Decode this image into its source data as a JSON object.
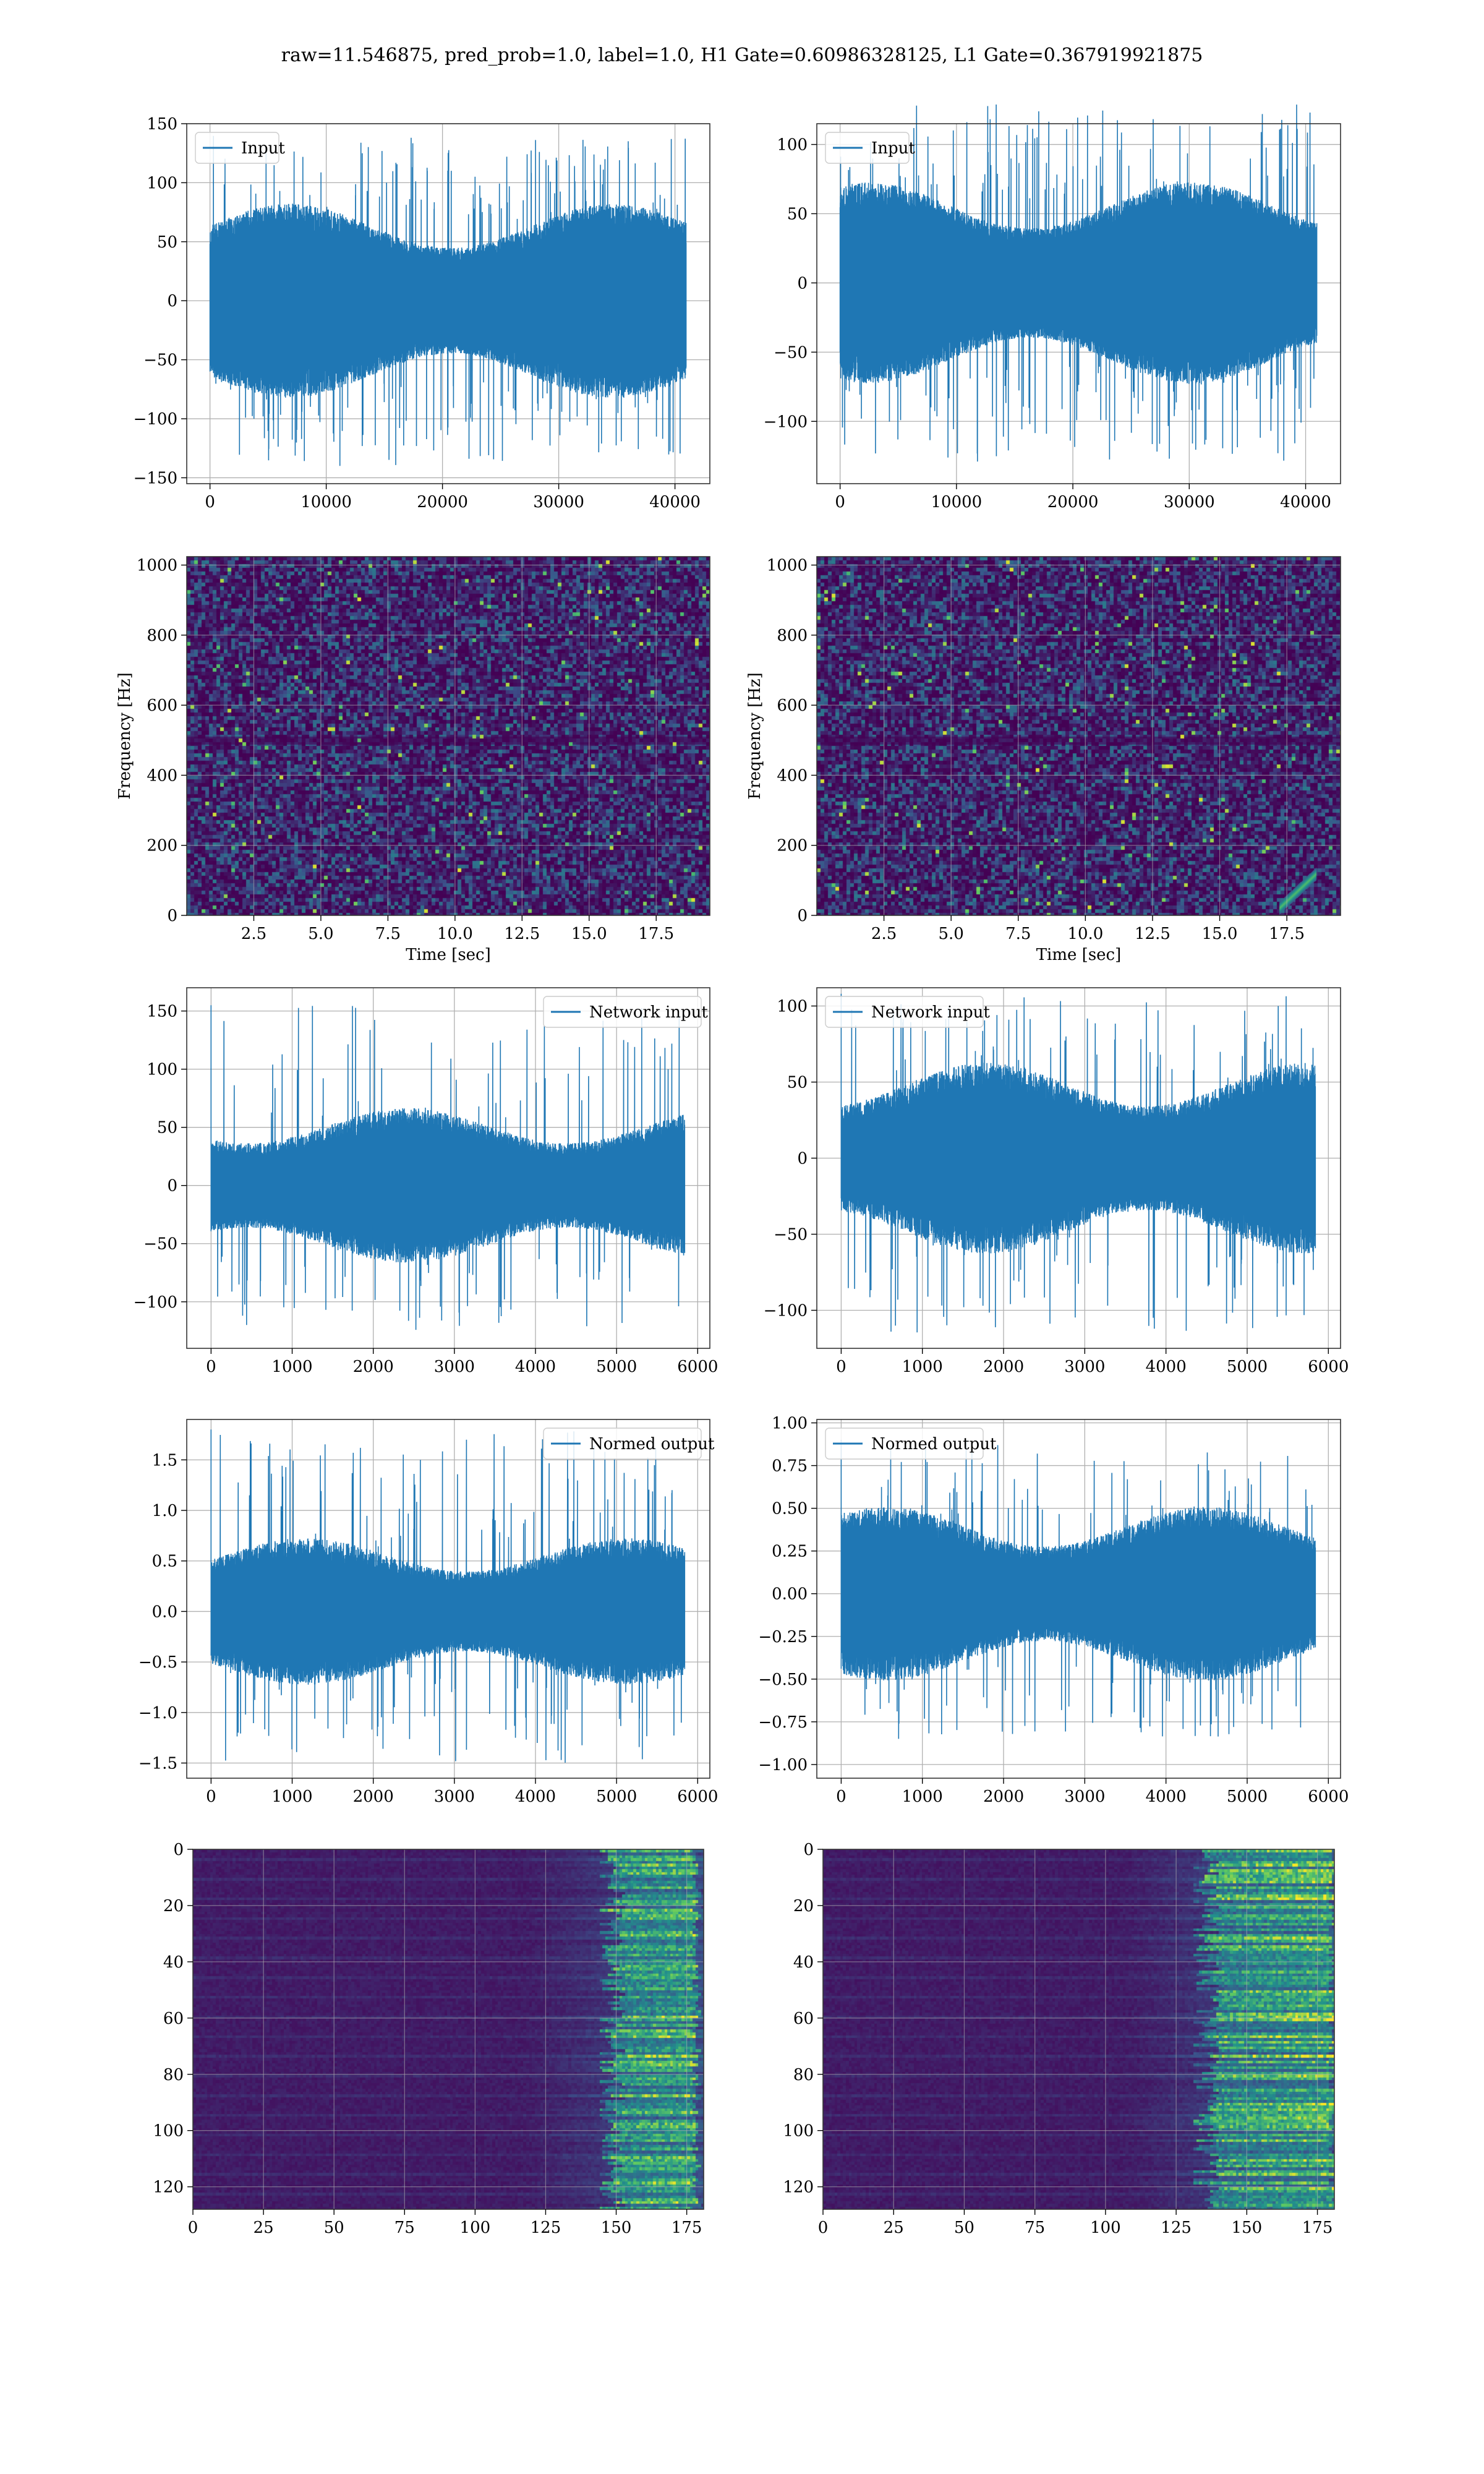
{
  "figure": {
    "suptitle": "raw=11.546875, pred_prob=1.0, label=1.0, H1 Gate=0.60986328125, L1 Gate=0.367919921875"
  },
  "colors": {
    "line": "#1f77b4",
    "grid": "#b0b0b0",
    "frame": "#333333",
    "viridis": [
      "#440154",
      "#3b528b",
      "#21918c",
      "#5ec962",
      "#fde725"
    ]
  },
  "chart_data": [
    {
      "id": "h1-input",
      "type": "line",
      "signal": "dense-noise",
      "legend": {
        "label": "Input",
        "loc": "upper-left"
      },
      "xlim": [
        -2000,
        43000
      ],
      "ylim": [
        -155,
        150
      ],
      "xticks": [
        0,
        10000,
        20000,
        30000,
        40000
      ],
      "yticks": [
        -150,
        -100,
        -50,
        0,
        50,
        100,
        150
      ],
      "n_samples": 40960,
      "envelope": {
        "core": 68,
        "peak_max": 140,
        "peak_min": -140
      }
    },
    {
      "id": "l1-input",
      "type": "line",
      "signal": "dense-noise",
      "legend": {
        "label": "Input",
        "loc": "upper-left"
      },
      "xlim": [
        -2000,
        43000
      ],
      "ylim": [
        -145,
        115
      ],
      "xticks": [
        0,
        10000,
        20000,
        30000,
        40000
      ],
      "yticks": [
        -100,
        -50,
        0,
        50,
        100
      ],
      "n_samples": 40960,
      "envelope": {
        "core": 60,
        "peak_max": 130,
        "peak_min": -130
      }
    },
    {
      "id": "h1-spectrogram",
      "type": "heatmap",
      "pattern": "noise-spectrogram",
      "xlabel": "Time [sec]",
      "ylabel": "Frequency [Hz]",
      "xlim": [
        0,
        19.5
      ],
      "ylim": [
        0,
        1024
      ],
      "xticks": [
        2.5,
        5.0,
        7.5,
        10.0,
        12.5,
        15.0,
        17.5
      ],
      "yticks": [
        0,
        200,
        400,
        600,
        800,
        1000
      ],
      "dark_band_hz": 500,
      "chirp": false
    },
    {
      "id": "l1-spectrogram",
      "type": "heatmap",
      "pattern": "noise-spectrogram",
      "xlabel": "Time [sec]",
      "ylabel": "Frequency [Hz]",
      "xlim": [
        0,
        19.5
      ],
      "ylim": [
        0,
        1024
      ],
      "xticks": [
        2.5,
        5.0,
        7.5,
        10.0,
        12.5,
        15.0,
        17.5
      ],
      "yticks": [
        0,
        200,
        400,
        600,
        800,
        1000
      ],
      "dark_band_hz": 500,
      "chirp": true,
      "chirp_time": [
        17.2,
        18.6
      ],
      "chirp_freq": [
        20,
        120
      ]
    },
    {
      "id": "h1-network-input",
      "type": "line",
      "signal": "noise",
      "legend": {
        "label": "Network input",
        "loc": "upper-right"
      },
      "xlim": [
        -300,
        6150
      ],
      "ylim": [
        -140,
        170
      ],
      "xticks": [
        0,
        1000,
        2000,
        3000,
        4000,
        5000,
        6000
      ],
      "yticks": [
        -100,
        -50,
        0,
        50,
        100,
        150
      ],
      "n_samples": 5840,
      "envelope": {
        "core": 55,
        "peak_max": 155,
        "peak_min": -125
      }
    },
    {
      "id": "l1-network-input",
      "type": "line",
      "signal": "noise",
      "legend": {
        "label": "Network input",
        "loc": "upper-left"
      },
      "xlim": [
        -300,
        6150
      ],
      "ylim": [
        -125,
        112
      ],
      "xticks": [
        0,
        1000,
        2000,
        3000,
        4000,
        5000,
        6000
      ],
      "yticks": [
        -100,
        -50,
        0,
        50,
        100
      ],
      "n_samples": 5840,
      "envelope": {
        "core": 52,
        "peak_max": 108,
        "peak_min": -115
      }
    },
    {
      "id": "h1-normed-output",
      "type": "line",
      "signal": "noise",
      "legend": {
        "label": "Normed output",
        "loc": "upper-right"
      },
      "xlim": [
        -300,
        6150
      ],
      "ylim": [
        -1.65,
        1.9
      ],
      "xticks": [
        0,
        1000,
        2000,
        3000,
        4000,
        5000,
        6000
      ],
      "yticks": [
        -1.5,
        -1.0,
        -0.5,
        0.0,
        0.5,
        1.0,
        1.5
      ],
      "n_samples": 5840,
      "envelope": {
        "core": 0.6,
        "peak_max": 1.8,
        "peak_min": -1.5
      }
    },
    {
      "id": "l1-normed-output",
      "type": "line",
      "signal": "noise",
      "legend": {
        "label": "Normed output",
        "loc": "upper-left"
      },
      "xlim": [
        -300,
        6150
      ],
      "ylim": [
        -1.08,
        1.02
      ],
      "xticks": [
        0,
        1000,
        2000,
        3000,
        4000,
        5000,
        6000
      ],
      "yticks": [
        -1.0,
        -0.75,
        -0.5,
        -0.25,
        0.0,
        0.25,
        0.5,
        0.75,
        1.0
      ],
      "n_samples": 5840,
      "envelope": {
        "core": 0.42,
        "peak_max": 0.9,
        "peak_min": -0.85
      }
    },
    {
      "id": "h1-feature-map",
      "type": "heatmap",
      "pattern": "feature-map",
      "xlim": [
        0,
        181
      ],
      "ylim": [
        128,
        0
      ],
      "y_inverted": true,
      "xticks": [
        0,
        25,
        50,
        75,
        100,
        125,
        150,
        175
      ],
      "yticks": [
        0,
        20,
        40,
        60,
        80,
        100,
        120
      ],
      "bright_cols": [
        148,
        178
      ]
    },
    {
      "id": "l1-feature-map",
      "type": "heatmap",
      "pattern": "feature-map",
      "xlim": [
        0,
        181
      ],
      "ylim": [
        128,
        0
      ],
      "y_inverted": true,
      "xticks": [
        0,
        25,
        50,
        75,
        100,
        125,
        150,
        175
      ],
      "yticks": [
        0,
        20,
        40,
        60,
        80,
        100,
        120
      ],
      "bright_cols": [
        135,
        180
      ]
    }
  ]
}
